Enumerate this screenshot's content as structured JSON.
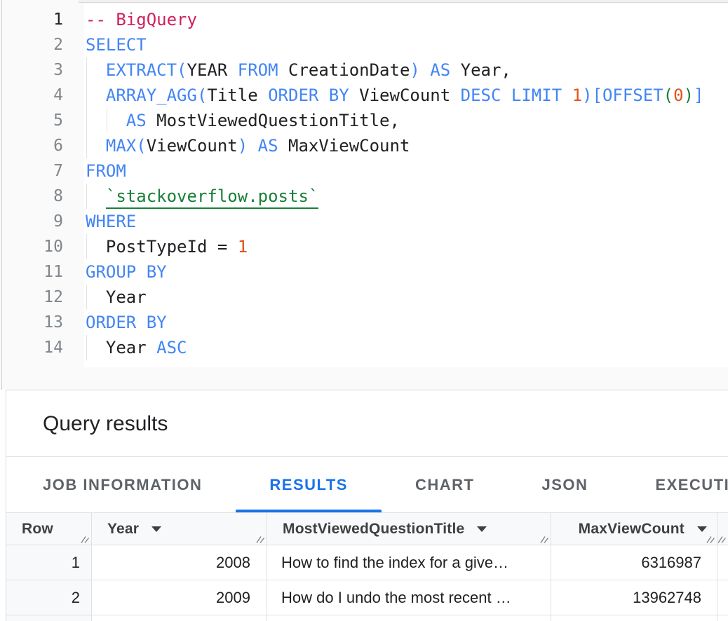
{
  "editor": {
    "language": "sql",
    "lines": [
      {
        "n": "1",
        "active": true,
        "seg": [
          [
            "-- BigQuery",
            "c"
          ]
        ]
      },
      {
        "n": "2",
        "active": false,
        "seg": [
          [
            "SELECT",
            "k"
          ]
        ]
      },
      {
        "n": "3",
        "active": false,
        "seg": [
          [
            "  ",
            "p"
          ],
          [
            "EXTRACT(",
            "k"
          ],
          [
            "YEAR ",
            "p"
          ],
          [
            "FROM",
            "k"
          ],
          [
            " CreationDate",
            "p"
          ],
          [
            ") AS",
            "k"
          ],
          [
            " Year,",
            "p"
          ]
        ]
      },
      {
        "n": "4",
        "active": false,
        "seg": [
          [
            "  ",
            "p"
          ],
          [
            "ARRAY_AGG(",
            "k"
          ],
          [
            "Title ",
            "p"
          ],
          [
            "ORDER BY",
            "k"
          ],
          [
            " ViewCount ",
            "p"
          ],
          [
            "DESC LIMIT ",
            "k"
          ],
          [
            "1",
            "n"
          ],
          [
            ")[OFFSET",
            "k"
          ],
          [
            "(",
            "g"
          ],
          [
            "0",
            "n"
          ],
          [
            ")",
            "g"
          ],
          [
            "]",
            "k"
          ]
        ]
      },
      {
        "n": "5",
        "active": false,
        "seg": [
          [
            "    ",
            "p"
          ],
          [
            "AS",
            "k"
          ],
          [
            " MostViewedQuestionTitle,",
            "p"
          ]
        ]
      },
      {
        "n": "6",
        "active": false,
        "seg": [
          [
            "  ",
            "p"
          ],
          [
            "MAX(",
            "k"
          ],
          [
            "ViewCount",
            "p"
          ],
          [
            ") AS",
            "k"
          ],
          [
            " MaxViewCount",
            "p"
          ]
        ]
      },
      {
        "n": "7",
        "active": false,
        "seg": [
          [
            "FROM",
            "k"
          ]
        ]
      },
      {
        "n": "8",
        "active": false,
        "seg": [
          [
            "  ",
            "p"
          ],
          [
            "`stackoverflow.posts`",
            "t"
          ]
        ]
      },
      {
        "n": "9",
        "active": false,
        "seg": [
          [
            "WHERE",
            "k"
          ]
        ]
      },
      {
        "n": "10",
        "active": false,
        "seg": [
          [
            "  PostTypeId = ",
            "p"
          ],
          [
            "1",
            "n"
          ]
        ]
      },
      {
        "n": "11",
        "active": false,
        "seg": [
          [
            "GROUP BY",
            "k"
          ]
        ]
      },
      {
        "n": "12",
        "active": false,
        "seg": [
          [
            "  Year",
            "p"
          ]
        ]
      },
      {
        "n": "13",
        "active": false,
        "seg": [
          [
            "ORDER BY",
            "k"
          ]
        ]
      },
      {
        "n": "14",
        "active": false,
        "seg": [
          [
            "  Year ",
            "p"
          ],
          [
            "ASC",
            "k"
          ]
        ]
      }
    ]
  },
  "results": {
    "title": "Query results"
  },
  "tabs": [
    {
      "label": "JOB INFORMATION",
      "active": false
    },
    {
      "label": "RESULTS",
      "active": true
    },
    {
      "label": "CHART",
      "active": false
    },
    {
      "label": "JSON",
      "active": false
    },
    {
      "label": "EXECUTION DETAILS",
      "active": false
    }
  ],
  "table": {
    "columns": [
      {
        "key": "row",
        "label": "Row",
        "sortable": false,
        "align": "left"
      },
      {
        "key": "year",
        "label": "Year",
        "sortable": true,
        "align": "left"
      },
      {
        "key": "title",
        "label": "MostViewedQuestionTitle",
        "sortable": true,
        "align": "left"
      },
      {
        "key": "max",
        "label": "MaxViewCount",
        "sortable": true,
        "align": "right"
      }
    ],
    "rows": [
      {
        "row": "1",
        "year": "2008",
        "title": "How to find the index for a give…",
        "max": "6316987"
      },
      {
        "row": "2",
        "year": "2009",
        "title": "How do I undo the most recent …",
        "max": "13962748"
      }
    ]
  },
  "colors": {
    "keyword": "#4285F4",
    "comment": "#D0215C",
    "number": "#E5531B",
    "table_reference": "#188038",
    "plain_code": "#202124",
    "active_tab": "#1A73E8",
    "inactive_tab": "#5F6368",
    "header_bg": "#F8F9FA",
    "border": "#E0E0E0"
  }
}
